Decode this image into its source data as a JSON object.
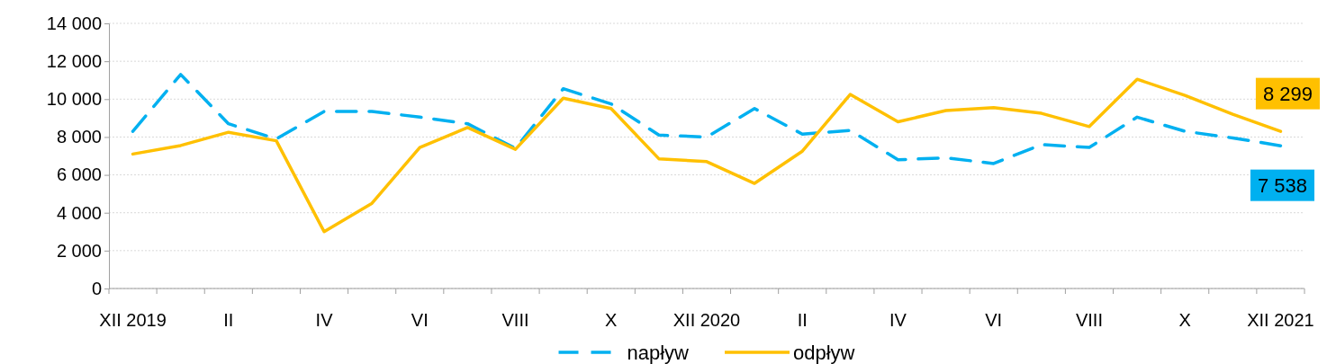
{
  "chart_data": {
    "type": "line",
    "categories": [
      "XII 2019",
      null,
      "II",
      null,
      "IV",
      null,
      "VI",
      null,
      "VIII",
      null,
      "X",
      null,
      "XII 2020",
      null,
      "II",
      null,
      "IV",
      null,
      "VI",
      null,
      "VIII",
      null,
      "X",
      null,
      "XII 2021"
    ],
    "series": [
      {
        "name": "napływ",
        "color": "#00b0f0",
        "line_style": "dashed",
        "values": [
          8300,
          11300,
          8700,
          7900,
          9350,
          9350,
          9050,
          8700,
          7400,
          10550,
          9750,
          8100,
          8000,
          9500,
          8150,
          8350,
          6800,
          6900,
          6600,
          7600,
          7450,
          9050,
          8300,
          7950,
          7538
        ],
        "value_labels": [
          null,
          null,
          null,
          null,
          null,
          null,
          null,
          null,
          null,
          null,
          null,
          null,
          null,
          null,
          null,
          null,
          null,
          null,
          null,
          null,
          null,
          null,
          null,
          null,
          "7 538"
        ]
      },
      {
        "name": "odpływ",
        "color": "#ffc000",
        "line_style": "solid",
        "values": [
          7100,
          7550,
          8250,
          7800,
          3000,
          4500,
          7450,
          8500,
          7350,
          10050,
          9500,
          6850,
          6700,
          5550,
          7250,
          10250,
          8800,
          9400,
          9550,
          9250,
          8550,
          11050,
          10200,
          9200,
          8299
        ],
        "value_labels": [
          null,
          null,
          null,
          null,
          null,
          null,
          null,
          null,
          null,
          null,
          null,
          null,
          null,
          null,
          null,
          null,
          null,
          null,
          null,
          null,
          null,
          null,
          null,
          null,
          "8 299"
        ]
      }
    ],
    "ylim": [
      0,
      14000
    ],
    "yticks": [
      0,
      {
        "value": 2000,
        "label": "2 000"
      },
      {
        "value": 4000,
        "label": "4 000"
      },
      {
        "value": 6000,
        "label": "6 000"
      },
      {
        "value": 8000,
        "label": "8 000"
      },
      {
        "value": 10000,
        "label": "10 000"
      },
      {
        "value": 12000,
        "label": "12 000"
      },
      {
        "value": 14000,
        "label": "14 000"
      }
    ],
    "grid": "y",
    "legend": "bottom",
    "marker": "none"
  }
}
